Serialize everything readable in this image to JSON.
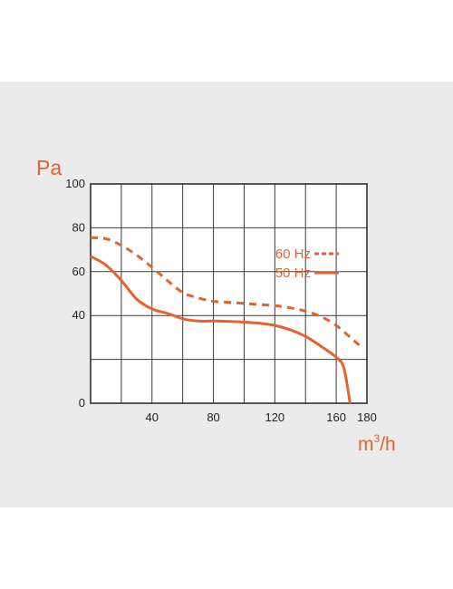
{
  "chart_data": {
    "type": "line",
    "ylabel": "Pa",
    "xlabel_base": "m",
    "xlabel_sup": "3",
    "xlabel_tail": "/h",
    "xlim": [
      0,
      180
    ],
    "ylim": [
      0,
      100
    ],
    "x_ticks": [
      40,
      80,
      120,
      160,
      180
    ],
    "y_ticks": [
      0,
      40,
      60,
      80,
      100
    ],
    "grid": true,
    "legend_position": "top-right",
    "accent_color": "#e8602c",
    "series": [
      {
        "name": "60 Hz",
        "style": "dashed",
        "x": [
          0,
          10,
          20,
          30,
          40,
          50,
          60,
          70,
          80,
          90,
          100,
          110,
          120,
          130,
          140,
          150,
          160,
          170,
          175
        ],
        "y": [
          75.5,
          75,
          72,
          67.5,
          62,
          56,
          50.5,
          48,
          46.5,
          46,
          45.5,
          45,
          44.5,
          43.5,
          42,
          39.5,
          35.5,
          29.5,
          26.5
        ]
      },
      {
        "name": "50 Hz",
        "style": "solid",
        "x": [
          0,
          10,
          20,
          30,
          40,
          50,
          60,
          70,
          80,
          90,
          100,
          110,
          120,
          130,
          140,
          150,
          160,
          165,
          169
        ],
        "y": [
          67,
          63,
          56,
          47.5,
          43,
          41,
          38.5,
          37.5,
          37.5,
          37.3,
          37,
          36.5,
          35.5,
          33.5,
          30.5,
          26,
          21,
          16,
          0
        ]
      }
    ]
  }
}
